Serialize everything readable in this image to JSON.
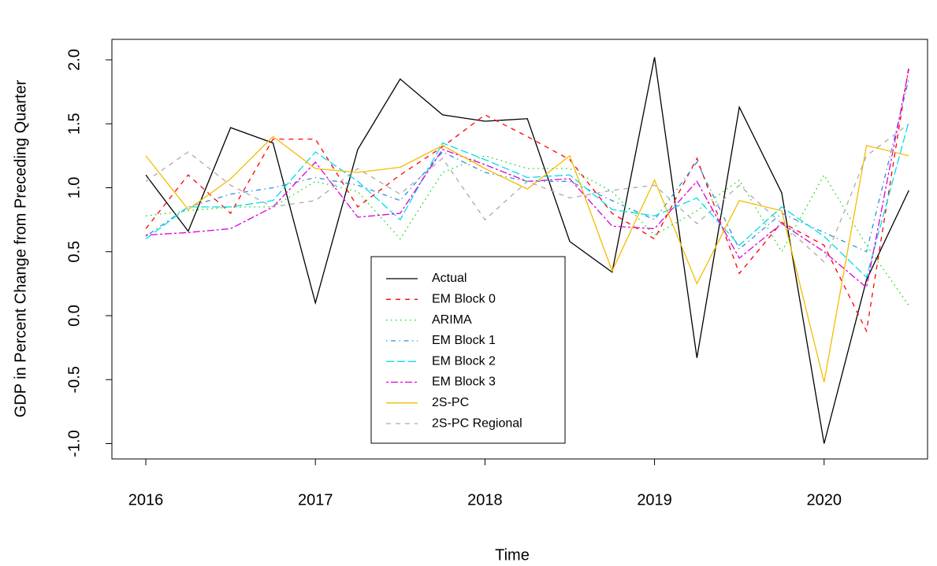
{
  "chart_data": {
    "type": "line",
    "xlabel": "Time",
    "ylabel": "GDP in Percent Change from Preceding Quarter",
    "x": [
      2016,
      2016.25,
      2016.5,
      2016.75,
      2017,
      2017.25,
      2017.5,
      2017.75,
      2018,
      2018.25,
      2018.5,
      2018.75,
      2019,
      2019.25,
      2019.5,
      2019.75,
      2020,
      2020.25,
      2020.5
    ],
    "xlim": [
      2015.8,
      2020.61
    ],
    "xticks": [
      2016,
      2017,
      2018,
      2019,
      2020
    ],
    "ylim": [
      -1.12,
      2.16
    ],
    "yticks": [
      {
        "value": -1,
        "label": "-1.0"
      },
      -0.5,
      {
        "value": 0,
        "label": "0.0"
      },
      0.5,
      {
        "value": 1,
        "label": "1.0"
      },
      1.5,
      {
        "value": 2,
        "label": "2.0"
      }
    ],
    "legend": "bottom",
    "series": [
      {
        "name": "Actual",
        "color": "#000000",
        "dash": "solid",
        "values": [
          1.1,
          0.66,
          1.47,
          1.35,
          0.1,
          1.3,
          1.85,
          1.57,
          1.52,
          1.54,
          0.58,
          0.34,
          2.02,
          -0.33,
          1.63,
          0.96,
          -1.0,
          0.28,
          0.98
        ]
      },
      {
        "name": "EM Block 0",
        "color": "#ff0000",
        "dash": "dashed",
        "values": [
          0.68,
          1.1,
          0.8,
          1.38,
          1.38,
          0.85,
          1.1,
          1.32,
          1.57,
          1.4,
          1.22,
          0.8,
          0.6,
          1.23,
          0.33,
          0.73,
          0.55,
          -0.12,
          1.95
        ]
      },
      {
        "name": "ARIMA",
        "color": "#00dd00",
        "dash": "dotted",
        "values": [
          0.78,
          0.82,
          0.85,
          0.85,
          1.05,
          0.97,
          0.6,
          1.12,
          1.25,
          1.15,
          1.15,
          0.97,
          0.63,
          0.82,
          1.06,
          0.5,
          1.1,
          0.55,
          0.08
        ]
      },
      {
        "name": "EM Block 1",
        "color": "#2f8fdf",
        "dash": "dotdash",
        "values": [
          0.62,
          0.85,
          0.95,
          1.0,
          1.08,
          1.02,
          0.9,
          1.28,
          1.12,
          1.05,
          1.05,
          0.9,
          0.75,
          1.2,
          0.52,
          0.8,
          0.65,
          0.5,
          1.85
        ]
      },
      {
        "name": "EM Block 2",
        "color": "#00dde8",
        "dash": "longdash",
        "values": [
          0.6,
          0.85,
          0.85,
          0.9,
          1.28,
          1.05,
          0.75,
          1.35,
          1.22,
          1.08,
          1.1,
          0.83,
          0.78,
          0.92,
          0.55,
          0.85,
          0.62,
          0.3,
          1.52
        ]
      },
      {
        "name": "EM Block 3",
        "color": "#dd00dd",
        "dash": "twodash",
        "values": [
          0.63,
          0.65,
          0.68,
          0.85,
          1.2,
          0.77,
          0.8,
          1.3,
          1.18,
          1.05,
          1.07,
          0.7,
          0.68,
          1.05,
          0.45,
          0.72,
          0.5,
          0.22,
          1.93
        ]
      },
      {
        "name": "2S-PC",
        "color": "#f5bb00",
        "dash": "solid",
        "values": [
          1.25,
          0.83,
          1.07,
          1.4,
          1.15,
          1.12,
          1.16,
          1.33,
          1.15,
          0.99,
          1.25,
          0.35,
          1.06,
          0.25,
          0.9,
          0.82,
          -0.52,
          1.33,
          1.25
        ]
      },
      {
        "name": "2S-PC Regional",
        "color": "#aaaaaa",
        "dash": "dashed",
        "values": [
          1.05,
          1.28,
          1.02,
          0.85,
          0.9,
          1.15,
          0.95,
          1.23,
          0.75,
          1.05,
          0.92,
          0.98,
          1.02,
          0.72,
          1.02,
          0.72,
          0.42,
          1.25,
          1.5
        ]
      }
    ]
  }
}
